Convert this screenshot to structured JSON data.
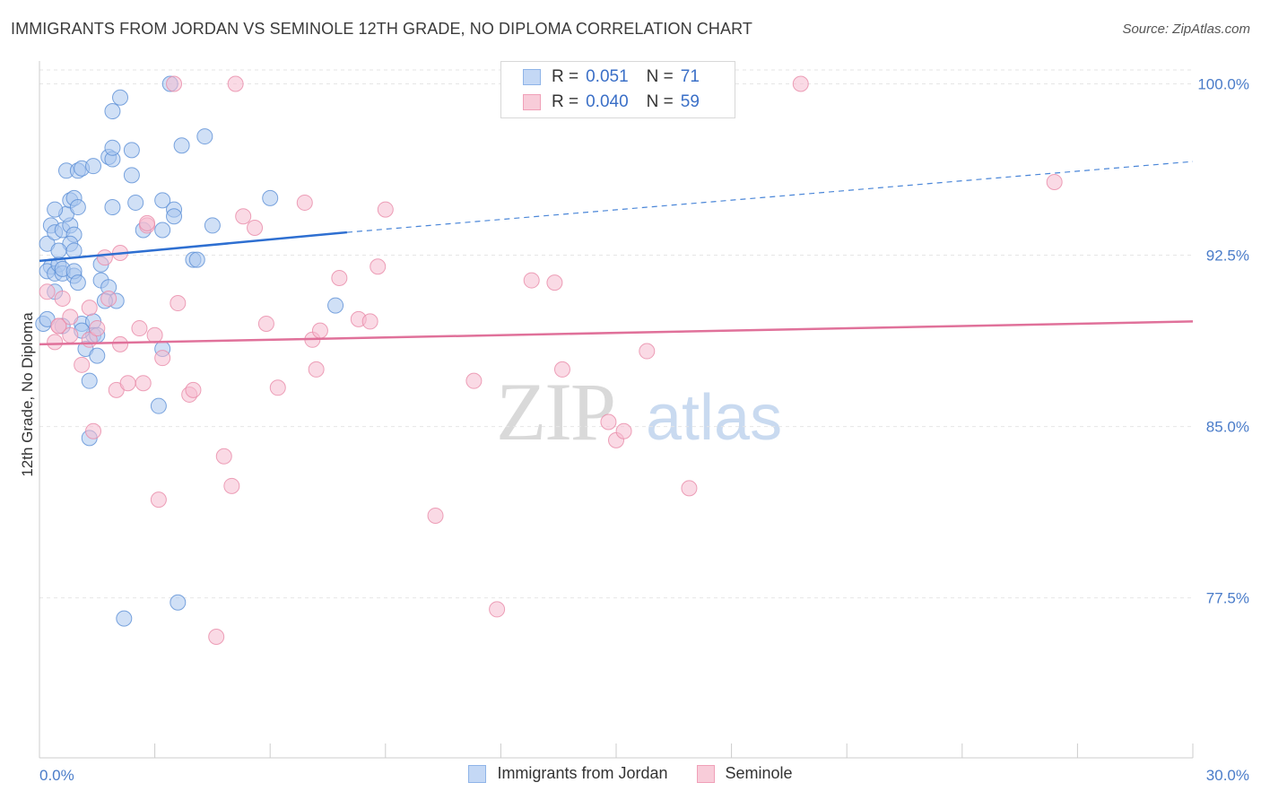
{
  "header": {
    "title": "IMMIGRANTS FROM JORDAN VS SEMINOLE 12TH GRADE, NO DIPLOMA CORRELATION CHART",
    "source": "Source: ZipAtlas.com"
  },
  "watermark": {
    "zip": "ZIP",
    "atlas": "atlas"
  },
  "legend": {
    "rows": [
      {
        "r_label": "R =",
        "r_value": "0.051",
        "n_label": "N =",
        "n_value": "71",
        "color": "#8fb4e8",
        "fill": "#c4d8f5"
      },
      {
        "r_label": "R =",
        "r_value": "0.040",
        "n_label": "N =",
        "n_value": "59",
        "color": "#f0a0b8",
        "fill": "#f8ccd9"
      }
    ]
  },
  "bottom_legend": [
    "Immigrants from Jordan",
    "Seminole"
  ],
  "chart_data": {
    "type": "scatter",
    "title": "IMMIGRANTS FROM JORDAN VS SEMINOLE 12TH GRADE, NO DIPLOMA CORRELATION CHART",
    "xlabel": "",
    "ylabel": "12th Grade, No Diploma",
    "xlim": [
      0,
      30
    ],
    "ylim": [
      70.5,
      101
    ],
    "x_tick_labels": [
      "0.0%",
      "30.0%"
    ],
    "y_ticks": [
      77.5,
      85.0,
      92.5,
      100.0
    ],
    "y_tick_labels": [
      "77.5%",
      "85.0%",
      "92.5%",
      "100.0%"
    ],
    "grid": true,
    "series": [
      {
        "name": "Immigrants from Jordan",
        "color": "#5b8fd6",
        "fill": "#a9c6ee",
        "trend": {
          "x": [
            0,
            8.0
          ],
          "y": [
            92.25,
            93.5
          ],
          "dashed_to": [
            30,
            96.6
          ]
        },
        "points": [
          [
            0.2,
            93.0
          ],
          [
            0.3,
            92.0
          ],
          [
            0.2,
            91.8
          ],
          [
            0.4,
            91.7
          ],
          [
            0.5,
            92.1
          ],
          [
            0.6,
            91.7
          ],
          [
            0.3,
            93.8
          ],
          [
            0.4,
            93.5
          ],
          [
            0.6,
            93.6
          ],
          [
            0.8,
            93.8
          ],
          [
            0.9,
            93.4
          ],
          [
            0.7,
            94.3
          ],
          [
            0.4,
            94.5
          ],
          [
            0.8,
            94.9
          ],
          [
            0.9,
            95.0
          ],
          [
            1.0,
            94.6
          ],
          [
            0.7,
            96.2
          ],
          [
            1.0,
            96.2
          ],
          [
            1.1,
            96.3
          ],
          [
            1.4,
            96.4
          ],
          [
            1.8,
            96.8
          ],
          [
            1.9,
            96.7
          ],
          [
            1.9,
            97.2
          ],
          [
            2.4,
            97.1
          ],
          [
            2.4,
            96.0
          ],
          [
            1.9,
            94.6
          ],
          [
            2.5,
            94.8
          ],
          [
            2.7,
            93.6
          ],
          [
            3.2,
            93.6
          ],
          [
            3.2,
            94.9
          ],
          [
            3.5,
            94.5
          ],
          [
            3.5,
            94.2
          ],
          [
            3.7,
            97.3
          ],
          [
            4.3,
            97.7
          ],
          [
            4.5,
            93.8
          ],
          [
            1.9,
            98.8
          ],
          [
            2.1,
            99.4
          ],
          [
            3.4,
            100.0
          ],
          [
            6.0,
            95.0
          ],
          [
            0.8,
            93.0
          ],
          [
            0.9,
            92.7
          ],
          [
            0.9,
            91.6
          ],
          [
            0.6,
            91.9
          ],
          [
            0.9,
            91.8
          ],
          [
            1.0,
            91.3
          ],
          [
            1.6,
            92.1
          ],
          [
            1.6,
            91.4
          ],
          [
            1.8,
            91.1
          ],
          [
            2.0,
            90.5
          ],
          [
            1.7,
            90.5
          ],
          [
            4.0,
            92.3
          ],
          [
            4.1,
            92.3
          ],
          [
            1.1,
            89.5
          ],
          [
            1.4,
            89.6
          ],
          [
            1.4,
            89.0
          ],
          [
            1.5,
            89.0
          ],
          [
            1.1,
            89.2
          ],
          [
            1.2,
            88.4
          ],
          [
            1.5,
            88.1
          ],
          [
            1.3,
            87.0
          ],
          [
            3.2,
            88.4
          ],
          [
            3.1,
            85.9
          ],
          [
            1.3,
            84.5
          ],
          [
            3.6,
            77.3
          ],
          [
            2.2,
            76.6
          ],
          [
            7.7,
            90.3
          ],
          [
            0.6,
            89.4
          ],
          [
            0.4,
            90.9
          ],
          [
            0.1,
            89.5
          ],
          [
            0.2,
            89.7
          ],
          [
            0.5,
            92.7
          ]
        ]
      },
      {
        "name": "Seminole",
        "color": "#e98aa8",
        "fill": "#f6bcd0",
        "trend": {
          "x": [
            0,
            30
          ],
          "y": [
            88.6,
            89.6
          ]
        },
        "points": [
          [
            0.2,
            90.9
          ],
          [
            0.4,
            88.7
          ],
          [
            0.5,
            89.4
          ],
          [
            0.5,
            89.4
          ],
          [
            0.6,
            90.6
          ],
          [
            0.8,
            89.8
          ],
          [
            0.8,
            89.0
          ],
          [
            1.1,
            87.7
          ],
          [
            1.3,
            88.8
          ],
          [
            1.3,
            90.2
          ],
          [
            1.5,
            89.3
          ],
          [
            1.7,
            92.4
          ],
          [
            1.8,
            90.6
          ],
          [
            2.0,
            86.6
          ],
          [
            2.1,
            88.6
          ],
          [
            2.1,
            92.6
          ],
          [
            2.3,
            86.9
          ],
          [
            2.6,
            89.3
          ],
          [
            2.7,
            86.9
          ],
          [
            2.8,
            93.8
          ],
          [
            2.8,
            93.9
          ],
          [
            3.0,
            89.0
          ],
          [
            3.2,
            88.0
          ],
          [
            3.6,
            90.4
          ],
          [
            3.9,
            86.4
          ],
          [
            4.0,
            86.6
          ],
          [
            4.6,
            75.8
          ],
          [
            4.8,
            83.7
          ],
          [
            5.0,
            82.4
          ],
          [
            5.3,
            94.2
          ],
          [
            5.6,
            93.7
          ],
          [
            5.9,
            89.5
          ],
          [
            6.2,
            86.7
          ],
          [
            6.9,
            94.8
          ],
          [
            7.1,
            88.8
          ],
          [
            7.2,
            87.5
          ],
          [
            7.3,
            89.2
          ],
          [
            7.8,
            91.5
          ],
          [
            8.3,
            89.7
          ],
          [
            8.6,
            89.6
          ],
          [
            8.8,
            92.0
          ],
          [
            9.0,
            94.5
          ],
          [
            10.3,
            81.1
          ],
          [
            11.3,
            87.0
          ],
          [
            11.9,
            77.0
          ],
          [
            12.8,
            91.4
          ],
          [
            13.4,
            91.3
          ],
          [
            13.6,
            87.5
          ],
          [
            14.8,
            85.2
          ],
          [
            15.0,
            84.4
          ],
          [
            15.2,
            84.8
          ],
          [
            15.8,
            88.3
          ],
          [
            16.9,
            82.3
          ],
          [
            19.8,
            100.0
          ],
          [
            26.4,
            95.7
          ],
          [
            3.5,
            100.0
          ],
          [
            5.1,
            100.0
          ],
          [
            1.4,
            84.8
          ],
          [
            3.1,
            81.8
          ]
        ]
      }
    ]
  }
}
